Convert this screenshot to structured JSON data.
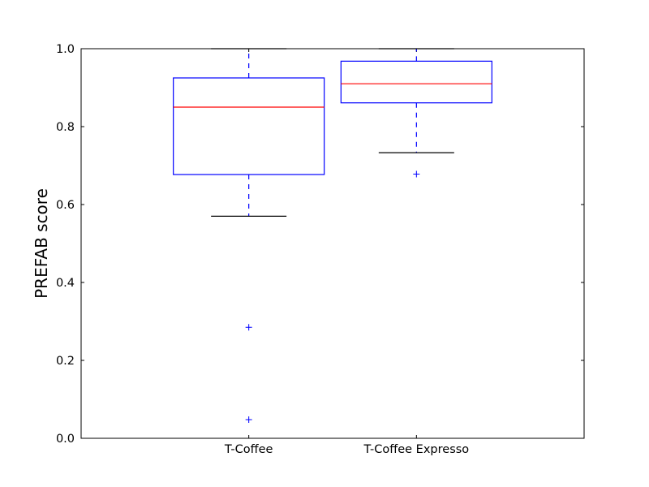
{
  "chart_data": {
    "type": "box",
    "title": "",
    "xlabel": "",
    "ylabel": "PREFAB score",
    "ylim": [
      0.0,
      1.0
    ],
    "yticks": [
      0.0,
      0.2,
      0.4,
      0.6,
      0.8,
      1.0
    ],
    "ytick_labels": [
      "0.0",
      "0.2",
      "0.4",
      "0.6",
      "0.8",
      "1.0"
    ],
    "grid": false,
    "categories": [
      "T-Coffee",
      "T-Coffee Expresso"
    ],
    "boxes": [
      {
        "category": "T-Coffee",
        "whisker_low": 0.57,
        "q1": 0.677,
        "median": 0.85,
        "q3": 0.925,
        "whisker_high": 1.0,
        "outliers": [
          0.285,
          0.048
        ]
      },
      {
        "category": "T-Coffee Expresso",
        "whisker_low": 0.733,
        "q1": 0.861,
        "median": 0.91,
        "q3": 0.968,
        "whisker_high": 1.0,
        "outliers": [
          0.678
        ]
      }
    ],
    "colors": {
      "box": "#0000ff",
      "median": "#ff0000",
      "cap": "#000000",
      "flier": "#0000ff",
      "axes": "#000000"
    }
  }
}
